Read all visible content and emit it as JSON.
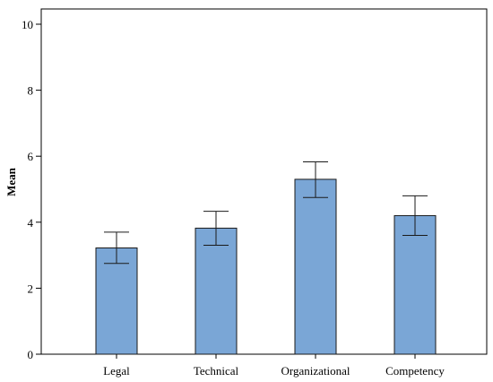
{
  "chart_data": {
    "type": "bar",
    "title": "",
    "xlabel": "",
    "ylabel": "Mean",
    "ylim": [
      0,
      10
    ],
    "yticks": [
      0,
      2,
      4,
      6,
      8,
      10
    ],
    "categories": [
      "Legal",
      "Technical",
      "Organizational",
      "Competency"
    ],
    "values": [
      3.22,
      3.82,
      5.3,
      4.2
    ],
    "error_low": [
      2.75,
      3.3,
      4.75,
      3.6
    ],
    "error_high": [
      3.7,
      4.33,
      5.83,
      4.8
    ],
    "grid": false,
    "legend": "none",
    "bar_color": "#7aa6d6",
    "bar_edge_color": "#1a1a1a",
    "error_bar_color": "#1a1a1a"
  }
}
